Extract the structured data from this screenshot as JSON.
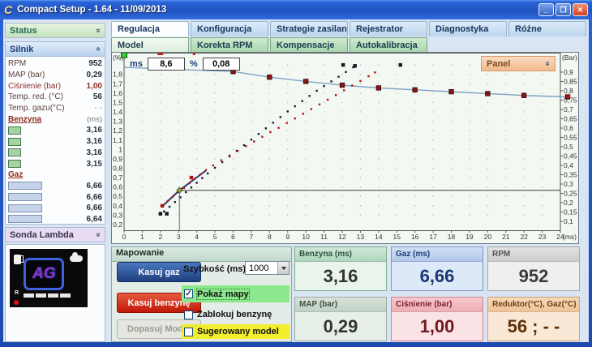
{
  "window": {
    "icon_letter": "C",
    "title": "Compact Setup - 1.64 - 11/09/2013",
    "minimize_glyph": "_",
    "maximize_glyph": "❐",
    "close_glyph": "✕"
  },
  "tabs": [
    {
      "label": "Regulacja",
      "active": true
    },
    {
      "label": "Konfiguracja",
      "active": false
    },
    {
      "label": "Strategie zasilania",
      "active": false
    },
    {
      "label": "Rejestrator",
      "active": false
    },
    {
      "label": "Diagnostyka",
      "active": false
    },
    {
      "label": "Różne",
      "active": false
    }
  ],
  "subtabs": [
    {
      "label": "Model",
      "active": true
    },
    {
      "label": "Korekta RPM",
      "active": false
    },
    {
      "label": "Kompensacje",
      "active": false
    },
    {
      "label": "Autokalibracja",
      "active": false
    }
  ],
  "sidebar": {
    "status_label": "Status",
    "silnik": {
      "label": "Silnik",
      "stats": [
        {
          "label": "RPM",
          "value": "952"
        },
        {
          "label": "MAP (bar)",
          "value": "0,29"
        },
        {
          "label": "Ciśnienie (bar)",
          "value": "1,00",
          "accent": true
        },
        {
          "label": "Temp. red. (°C)",
          "value": "56"
        },
        {
          "label": "Temp. gazu(°C)",
          "value": "- -",
          "muted": true
        }
      ],
      "benzyna": {
        "label": "Benzyna",
        "unit": "(ms)",
        "values": [
          "3,16",
          "3,16",
          "3,16",
          "3,15"
        ]
      },
      "gaz": {
        "label": "Gaz",
        "unit": "",
        "values": [
          "6,66",
          "6,66",
          "6,66",
          "6,64"
        ]
      }
    },
    "sonda_label": "Sonda Lambda",
    "lcd": {
      "logo": "AG",
      "r_label": "R"
    }
  },
  "chart": {
    "ms_label": "ms",
    "ms_value": "8,6",
    "percent_label": "%",
    "percent_value": "0,08",
    "panel_label": "Panel"
  },
  "chart_data": {
    "type": "line",
    "x_axis": {
      "label": "(ms)",
      "min": 0,
      "max": 24,
      "ticks": [
        "0",
        "1",
        "2",
        "3",
        "4",
        "5",
        "6",
        "7",
        "8",
        "9",
        "10",
        "11",
        "12",
        "13",
        "14",
        "15",
        "16",
        "17",
        "18",
        "19",
        "20",
        "21",
        "22",
        "23",
        "24"
      ]
    },
    "y_left": {
      "label": "(%)",
      "min": 0.2,
      "max": 1.8,
      "ticks": [
        "1,8",
        "1,7",
        "1,6",
        "1,5",
        "1,4",
        "1,3",
        "1,2",
        "1,1",
        "1",
        "0,9",
        "0,8",
        "0,7",
        "0,6",
        "0,5",
        "0,4",
        "0,3",
        "0,2"
      ]
    },
    "y_right": {
      "label": "(Bar)",
      "min": 0.1,
      "max": 0.9,
      "ticks": [
        "0,9",
        "0,85",
        "0,8",
        "0,75",
        "0,7",
        "0,65",
        "0,6",
        "0,55",
        "0,5",
        "0,45",
        "0,4",
        "0,35",
        "0,3",
        "0,25",
        "0,2",
        "0,15",
        "0,1"
      ]
    },
    "crosshair": {
      "x": 3.05,
      "y": 0.565
    },
    "top_marks": [
      {
        "x": 2.0,
        "w": 7
      },
      {
        "x": 3.85,
        "w": 3
      }
    ],
    "handle_point": [
      0,
      1.875
    ],
    "series": [
      {
        "name": "mnoznik-modelu",
        "type": "line-markers",
        "color": "#7fa3c4",
        "marker_color": "#8b1412",
        "points": [
          [
            0,
            1.875
          ],
          [
            6,
            1.83
          ],
          [
            8,
            1.77
          ],
          [
            10,
            1.725
          ],
          [
            12,
            1.685
          ],
          [
            14,
            1.655
          ],
          [
            16,
            1.635
          ],
          [
            18,
            1.615
          ],
          [
            20,
            1.595
          ],
          [
            22,
            1.575
          ],
          [
            24.4,
            1.56
          ]
        ]
      },
      {
        "name": "mapa-gazu-solid",
        "type": "line",
        "color": "#1e3a6e",
        "width": 2,
        "points": [
          [
            2.05,
            0.385
          ],
          [
            3.05,
            0.565
          ],
          [
            4.5,
            0.775
          ]
        ]
      },
      {
        "name": "mapa-gazu-dots",
        "type": "dots",
        "color": "#1a1a2e",
        "points": [
          [
            2.2,
            0.34
          ],
          [
            2.5,
            0.39
          ],
          [
            2.8,
            0.44
          ],
          [
            3.1,
            0.49
          ],
          [
            3.4,
            0.545
          ],
          [
            3.7,
            0.595
          ],
          [
            4.0,
            0.645
          ],
          [
            4.3,
            0.695
          ],
          [
            4.6,
            0.745
          ],
          [
            5.0,
            0.805
          ],
          [
            5.4,
            0.865
          ],
          [
            5.8,
            0.925
          ],
          [
            6.2,
            0.985
          ],
          [
            6.6,
            1.045
          ],
          [
            7.0,
            1.105
          ],
          [
            7.4,
            1.165
          ],
          [
            7.8,
            1.225
          ],
          [
            8.2,
            1.285
          ],
          [
            8.6,
            1.345
          ],
          [
            9.0,
            1.405
          ],
          [
            9.4,
            1.46
          ],
          [
            9.8,
            1.515
          ],
          [
            10.2,
            1.57
          ],
          [
            10.6,
            1.625
          ],
          [
            11.0,
            1.675
          ],
          [
            11.4,
            1.725
          ],
          [
            11.8,
            1.775
          ],
          [
            12.2,
            1.825
          ],
          [
            12.6,
            1.875
          ]
        ]
      },
      {
        "name": "mapa-benzyny-dots",
        "type": "dots",
        "color": "#c01212",
        "points": [
          [
            2.1,
            0.4
          ],
          [
            2.4,
            0.45
          ],
          [
            2.7,
            0.5
          ],
          [
            3.0,
            0.545
          ],
          [
            3.3,
            0.59
          ],
          [
            3.6,
            0.64
          ],
          [
            3.9,
            0.69
          ],
          [
            4.2,
            0.735
          ],
          [
            4.5,
            0.78
          ],
          [
            4.9,
            0.83
          ],
          [
            5.35,
            0.885
          ],
          [
            5.8,
            0.935
          ],
          [
            6.25,
            0.985
          ],
          [
            6.7,
            1.035
          ],
          [
            7.15,
            1.085
          ],
          [
            7.6,
            1.135
          ],
          [
            8.05,
            1.185
          ],
          [
            8.5,
            1.23
          ],
          [
            8.95,
            1.28
          ],
          [
            9.4,
            1.33
          ],
          [
            9.85,
            1.38
          ],
          [
            10.3,
            1.43
          ],
          [
            10.75,
            1.48
          ],
          [
            11.2,
            1.53
          ],
          [
            11.65,
            1.58
          ],
          [
            12.1,
            1.63
          ],
          [
            12.55,
            1.68
          ],
          [
            13.0,
            1.73
          ],
          [
            13.45,
            1.78
          ],
          [
            13.8,
            1.82
          ]
        ]
      },
      {
        "name": "punkty-czarne",
        "type": "squares",
        "color": "#15151f",
        "points": [
          [
            2.0,
            0.315
          ],
          [
            2.35,
            0.315
          ],
          [
            12.05,
            1.9
          ],
          [
            12.7,
            1.89
          ],
          [
            15.2,
            1.9
          ]
        ]
      },
      {
        "name": "punkty-czerwone",
        "type": "squares",
        "color": "#b01010",
        "points": [
          [
            2.1,
            0.4
          ],
          [
            3.7,
            0.7
          ],
          [
            24.45,
            1.565
          ]
        ]
      }
    ]
  },
  "mapowanie": {
    "title": "Mapowanie",
    "buttons": [
      {
        "label": "Kasuj gaz",
        "style": "blue"
      },
      {
        "label": "Kasuj benzynę",
        "style": "red"
      },
      {
        "label": "Dopasuj Model",
        "style": "disabled"
      }
    ],
    "speed_label": "Szybkość (ms)",
    "speed_value": "1000",
    "checkboxes": [
      {
        "label": "Pokaż mapy",
        "checked": true,
        "highlight": "hl-green"
      },
      {
        "label": "Zablokuj benzynę",
        "checked": false,
        "highlight": "plain"
      },
      {
        "label": "Sugerowany model",
        "checked": false,
        "highlight": "hl-yellow"
      }
    ],
    "check_glyph": "✓"
  },
  "tiles": [
    {
      "label": "Benzyna (ms)",
      "value": "3,16",
      "scheme": "t-green"
    },
    {
      "label": "Gaz (ms)",
      "value": "6,66",
      "scheme": "t-blue"
    },
    {
      "label": "RPM",
      "value": "952",
      "scheme": "t-gray"
    },
    {
      "label": "MAP (bar)",
      "value": "0,29",
      "scheme": "t-graygreen"
    },
    {
      "label": "Ciśnienie (bar)",
      "value": "1,00",
      "scheme": "t-pink"
    },
    {
      "label": "Reduktor(°C), Gaz(°C)",
      "value": "56 ;  - -",
      "scheme": "t-orange"
    }
  ]
}
